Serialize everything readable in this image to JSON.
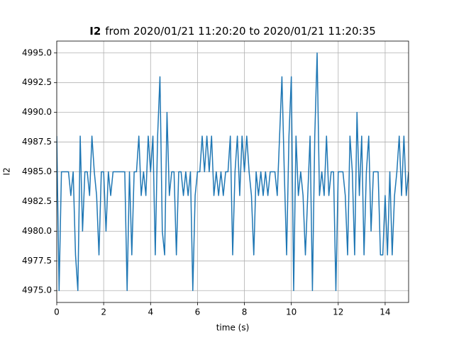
{
  "chart_data": {
    "type": "line",
    "title_bold": "I2",
    "title": "from 2020/01/21 11:20:20 to 2020/01/21 11:20:35",
    "x_label": "time (s)",
    "y_label": "I2",
    "xlim": [
      0,
      15
    ],
    "xticks": [
      0,
      2,
      4,
      6,
      8,
      10,
      12,
      14
    ],
    "ylim": [
      4974,
      4996
    ],
    "yticks": [
      {
        "value": 4975,
        "label": "4975.0"
      },
      {
        "value": 4977.5,
        "label": "4977.5"
      },
      {
        "value": 4980,
        "label": "4980.0"
      },
      {
        "value": 4982.5,
        "label": "4982.5"
      },
      {
        "value": 4985,
        "label": "4985.0"
      },
      {
        "value": 4987.5,
        "label": "4987.5"
      },
      {
        "value": 4990,
        "label": "4990.0"
      },
      {
        "value": 4992.5,
        "label": "4992.5"
      },
      {
        "value": 4995,
        "label": "4995.0"
      }
    ],
    "grid": true,
    "x": [
      0,
      0.1,
      0.2,
      0.3,
      0.4,
      0.5,
      0.6,
      0.7,
      0.8,
      0.9,
      1,
      1.1,
      1.2,
      1.3,
      1.4,
      1.5,
      1.6,
      1.7,
      1.8,
      1.9,
      2,
      2.1,
      2.2,
      2.3,
      2.4,
      2.5,
      2.6,
      2.7,
      2.8,
      2.9,
      3,
      3.1,
      3.2,
      3.3,
      3.4,
      3.5,
      3.6,
      3.7,
      3.8,
      3.9,
      4,
      4.1,
      4.2,
      4.3,
      4.4,
      4.5,
      4.6,
      4.7,
      4.8,
      4.9,
      5,
      5.1,
      5.2,
      5.3,
      5.4,
      5.5,
      5.6,
      5.7,
      5.8,
      5.9,
      6,
      6.1,
      6.2,
      6.3,
      6.4,
      6.5,
      6.6,
      6.7,
      6.8,
      6.9,
      7,
      7.1,
      7.2,
      7.3,
      7.4,
      7.5,
      7.6,
      7.7,
      7.8,
      7.9,
      8,
      8.1,
      8.2,
      8.3,
      8.4,
      8.5,
      8.6,
      8.7,
      8.8,
      8.9,
      9,
      9.1,
      9.2,
      9.3,
      9.4,
      9.5,
      9.6,
      9.7,
      9.8,
      9.9,
      10,
      10.1,
      10.2,
      10.3,
      10.4,
      10.5,
      10.6,
      10.7,
      10.8,
      10.9,
      11,
      11.1,
      11.2,
      11.3,
      11.4,
      11.5,
      11.6,
      11.7,
      11.8,
      11.9,
      12,
      12.1,
      12.2,
      12.3,
      12.4,
      12.5,
      12.6,
      12.7,
      12.8,
      12.9,
      13,
      13.1,
      13.2,
      13.3,
      13.4,
      13.5,
      13.6,
      13.7,
      13.8,
      13.9,
      14,
      14.1,
      14.2,
      14.3,
      14.4,
      14.5,
      14.6,
      14.7,
      14.8,
      14.9,
      15
    ],
    "series": [
      {
        "color": "#1f77b4",
        "values": [
          4988,
          4975,
          4985,
          4985,
          4985,
          4985,
          4983,
          4985,
          4978,
          4975,
          4988,
          4980,
          4985,
          4985,
          4983,
          4988,
          4985,
          4983,
          4978,
          4985,
          4985,
          4980,
          4985,
          4983,
          4985,
          4985,
          4985,
          4985,
          4985,
          4985,
          4975,
          4985,
          4978,
          4985,
          4985,
          4988,
          4983,
          4985,
          4983,
          4988,
          4985,
          4988,
          4978,
          4988,
          4993,
          4980,
          4978,
          4990,
          4983,
          4985,
          4985,
          4978,
          4985,
          4985,
          4983,
          4985,
          4983,
          4985,
          4975,
          4983,
          4985,
          4985,
          4988,
          4985,
          4988,
          4985,
          4988,
          4983,
          4985,
          4983,
          4985,
          4983,
          4985,
          4985,
          4988,
          4978,
          4985,
          4988,
          4983,
          4988,
          4985,
          4988,
          4985,
          4983,
          4978,
          4985,
          4983,
          4985,
          4983,
          4985,
          4983,
          4985,
          4985,
          4985,
          4983,
          4988,
          4993,
          4985,
          4978,
          4988,
          4993,
          4975,
          4988,
          4983,
          4985,
          4983,
          4978,
          4983,
          4988,
          4975,
          4988,
          4995,
          4983,
          4985,
          4983,
          4988,
          4983,
          4985,
          4985,
          4975,
          4985,
          4985,
          4985,
          4983,
          4978,
          4988,
          4985,
          4978,
          4990,
          4983,
          4988,
          4978,
          4985,
          4988,
          4980,
          4985,
          4985,
          4985,
          4978,
          4978,
          4983,
          4978,
          4985,
          4978,
          4983,
          4985,
          4988,
          4983,
          4988,
          4983,
          4985
        ]
      }
    ]
  }
}
